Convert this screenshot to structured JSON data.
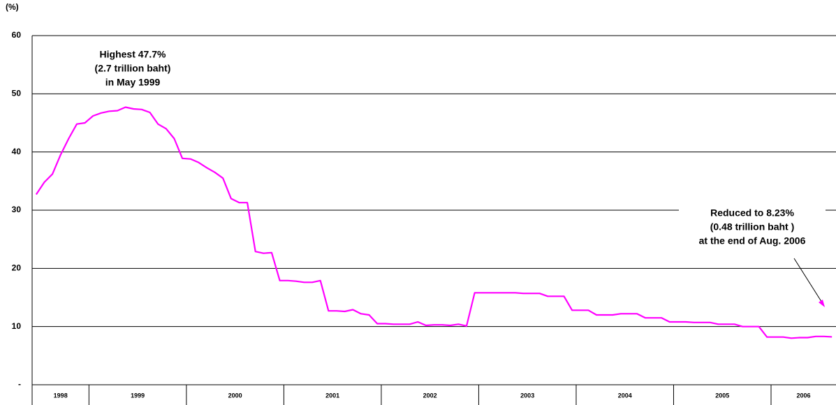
{
  "chart_data": {
    "type": "line",
    "y_label": "(%)",
    "categories": [
      "1998",
      null,
      null,
      null,
      null,
      null,
      null,
      "1999",
      null,
      null,
      null,
      null,
      null,
      null,
      null,
      null,
      null,
      null,
      null,
      "2000",
      null,
      null,
      null,
      null,
      null,
      null,
      null,
      null,
      null,
      null,
      null,
      "2001",
      null,
      null,
      null,
      null,
      null,
      null,
      null,
      null,
      null,
      null,
      null,
      "2002",
      null,
      null,
      null,
      null,
      null,
      null,
      null,
      null,
      null,
      null,
      null,
      "2003",
      null,
      null,
      null,
      null,
      null,
      null,
      null,
      null,
      null,
      null,
      null,
      "2004",
      null,
      null,
      null,
      null,
      null,
      null,
      null,
      null,
      null,
      null,
      null,
      "2005",
      null,
      null,
      null,
      null,
      null,
      null,
      null,
      null,
      null,
      null,
      null,
      "2006",
      null,
      null,
      null,
      null,
      null,
      null,
      null
    ],
    "series": [
      {
        "color": "#ff00ff",
        "values": [
          32.7,
          34.8,
          36.2,
          39.5,
          42.3,
          44.8,
          45.0,
          46.2,
          46.7,
          47.0,
          47.1,
          47.7,
          47.4,
          47.3,
          46.8,
          44.8,
          44.0,
          42.3,
          38.9,
          38.8,
          38.2,
          37.3,
          36.5,
          35.5,
          32.0,
          31.3,
          31.3,
          22.9,
          22.6,
          22.7,
          17.9,
          17.9,
          17.8,
          17.6,
          17.6,
          17.9,
          12.7,
          12.7,
          12.6,
          12.9,
          12.2,
          12.0,
          10.5,
          10.5,
          10.4,
          10.4,
          10.4,
          10.8,
          10.2,
          10.3,
          10.3,
          10.2,
          10.4,
          10.1,
          15.8,
          15.8,
          15.8,
          15.8,
          15.8,
          15.8,
          15.7,
          15.7,
          15.7,
          15.2,
          15.2,
          15.2,
          12.8,
          12.8,
          12.8,
          12.0,
          12.0,
          12.0,
          12.2,
          12.2,
          12.2,
          11.5,
          11.5,
          11.5,
          10.8,
          10.8,
          10.8,
          10.7,
          10.7,
          10.7,
          10.4,
          10.4,
          10.4,
          10.0,
          10.0,
          10.0,
          8.2,
          8.2,
          8.2,
          8.0,
          8.1,
          8.1,
          8.3,
          8.3,
          8.23
        ]
      }
    ],
    "ylim": [
      0,
      60
    ],
    "yticks": [
      {
        "value": 0,
        "label": "-"
      },
      10,
      20,
      30,
      40,
      50,
      60
    ],
    "grid": true,
    "annotations": [
      {
        "lines": [
          "Highest 47.7%",
          "(2.7 trillion baht)",
          "in May 1999"
        ]
      },
      {
        "lines": [
          "Reduced to 8.23%",
          "(0.48  trillion baht )",
          "at the end of Aug. 2006"
        ]
      }
    ]
  }
}
